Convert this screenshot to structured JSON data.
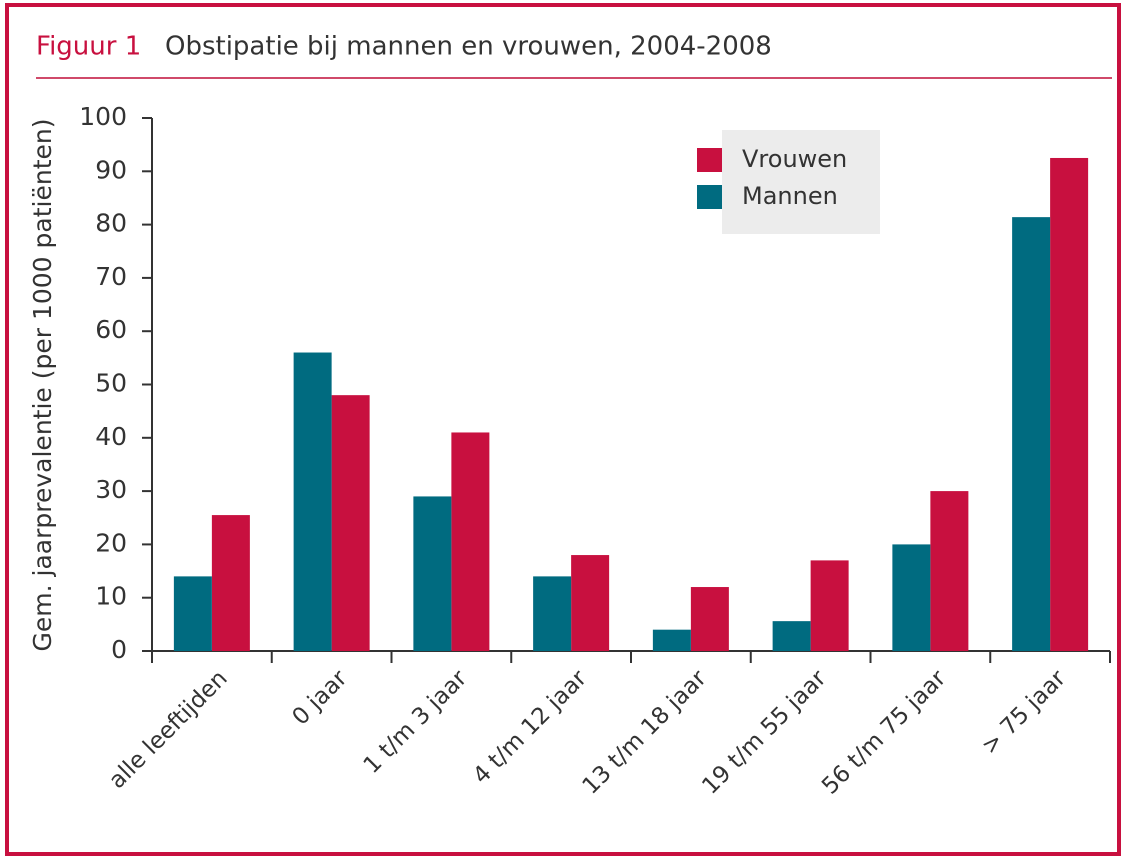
{
  "chart_data": {
    "type": "bar",
    "figure_label": "Figuur 1",
    "title": "Obstipatie bij mannen en vrouwen, 2004-2008",
    "y_label": "Gem. jaarprevalentie (per 1000 patiënten)",
    "categories": [
      "alle leeftijden",
      "0 jaar",
      "1 t/m 3 jaar",
      "4 t/m 12 jaar",
      "13 t/m 18 jaar",
      "19 t/m 55 jaar",
      "56 t/m 75 jaar",
      "> 75 jaar"
    ],
    "series": [
      {
        "name": "Vrouwen",
        "color": "#c8103f",
        "values": [
          25.5,
          48,
          41,
          18,
          12,
          17,
          30,
          92.5
        ]
      },
      {
        "name": "Mannen",
        "color": "#006b80",
        "values": [
          14,
          56,
          29,
          14,
          4,
          5.6,
          20,
          81.4
        ]
      }
    ],
    "ylim": [
      0,
      100
    ],
    "yticks": [
      0,
      10,
      20,
      30,
      40,
      50,
      60,
      70,
      80,
      90,
      100
    ],
    "legend": "upper right"
  }
}
